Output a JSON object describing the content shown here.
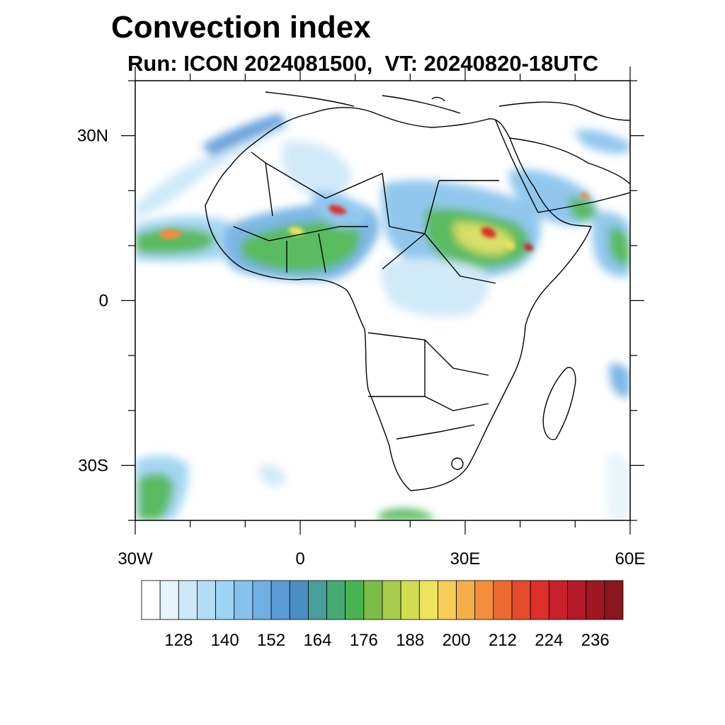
{
  "title": "Convection index",
  "subtitle": "Run: ICON 2024081500,  VT: 20240820-18UTC",
  "map": {
    "extent": {
      "lon": [
        -30,
        60
      ],
      "lat": [
        -40,
        40
      ]
    },
    "lat_ticks": [
      {
        "value": 30,
        "label": "30N"
      },
      {
        "value": 0,
        "label": "0"
      },
      {
        "value": -30,
        "label": "30S"
      }
    ],
    "lon_ticks": [
      {
        "value": -30,
        "label": "30W"
      },
      {
        "value": 0,
        "label": "0"
      },
      {
        "value": 30,
        "label": "30E"
      },
      {
        "value": 60,
        "label": "60E"
      }
    ],
    "coastline_color": "#000000"
  },
  "colorbar": {
    "colors": [
      "#ffffff",
      "#e6f4fc",
      "#cde8f8",
      "#b4ddf5",
      "#9ed3f3",
      "#86c2ec",
      "#70b0e3",
      "#5b9bd8",
      "#4b8fc2",
      "#479e9a",
      "#46aa74",
      "#48b451",
      "#7cbd48",
      "#a8cc4c",
      "#d2dd54",
      "#eee45d",
      "#f7cd57",
      "#f5ae4a",
      "#f28e3c",
      "#ec6a30",
      "#e54a2b",
      "#dd2f2c",
      "#c8202d",
      "#b41a29",
      "#9f1723",
      "#8c161f"
    ],
    "labels": [
      "128",
      "140",
      "152",
      "164",
      "176",
      "188",
      "200",
      "212",
      "224",
      "236"
    ]
  }
}
